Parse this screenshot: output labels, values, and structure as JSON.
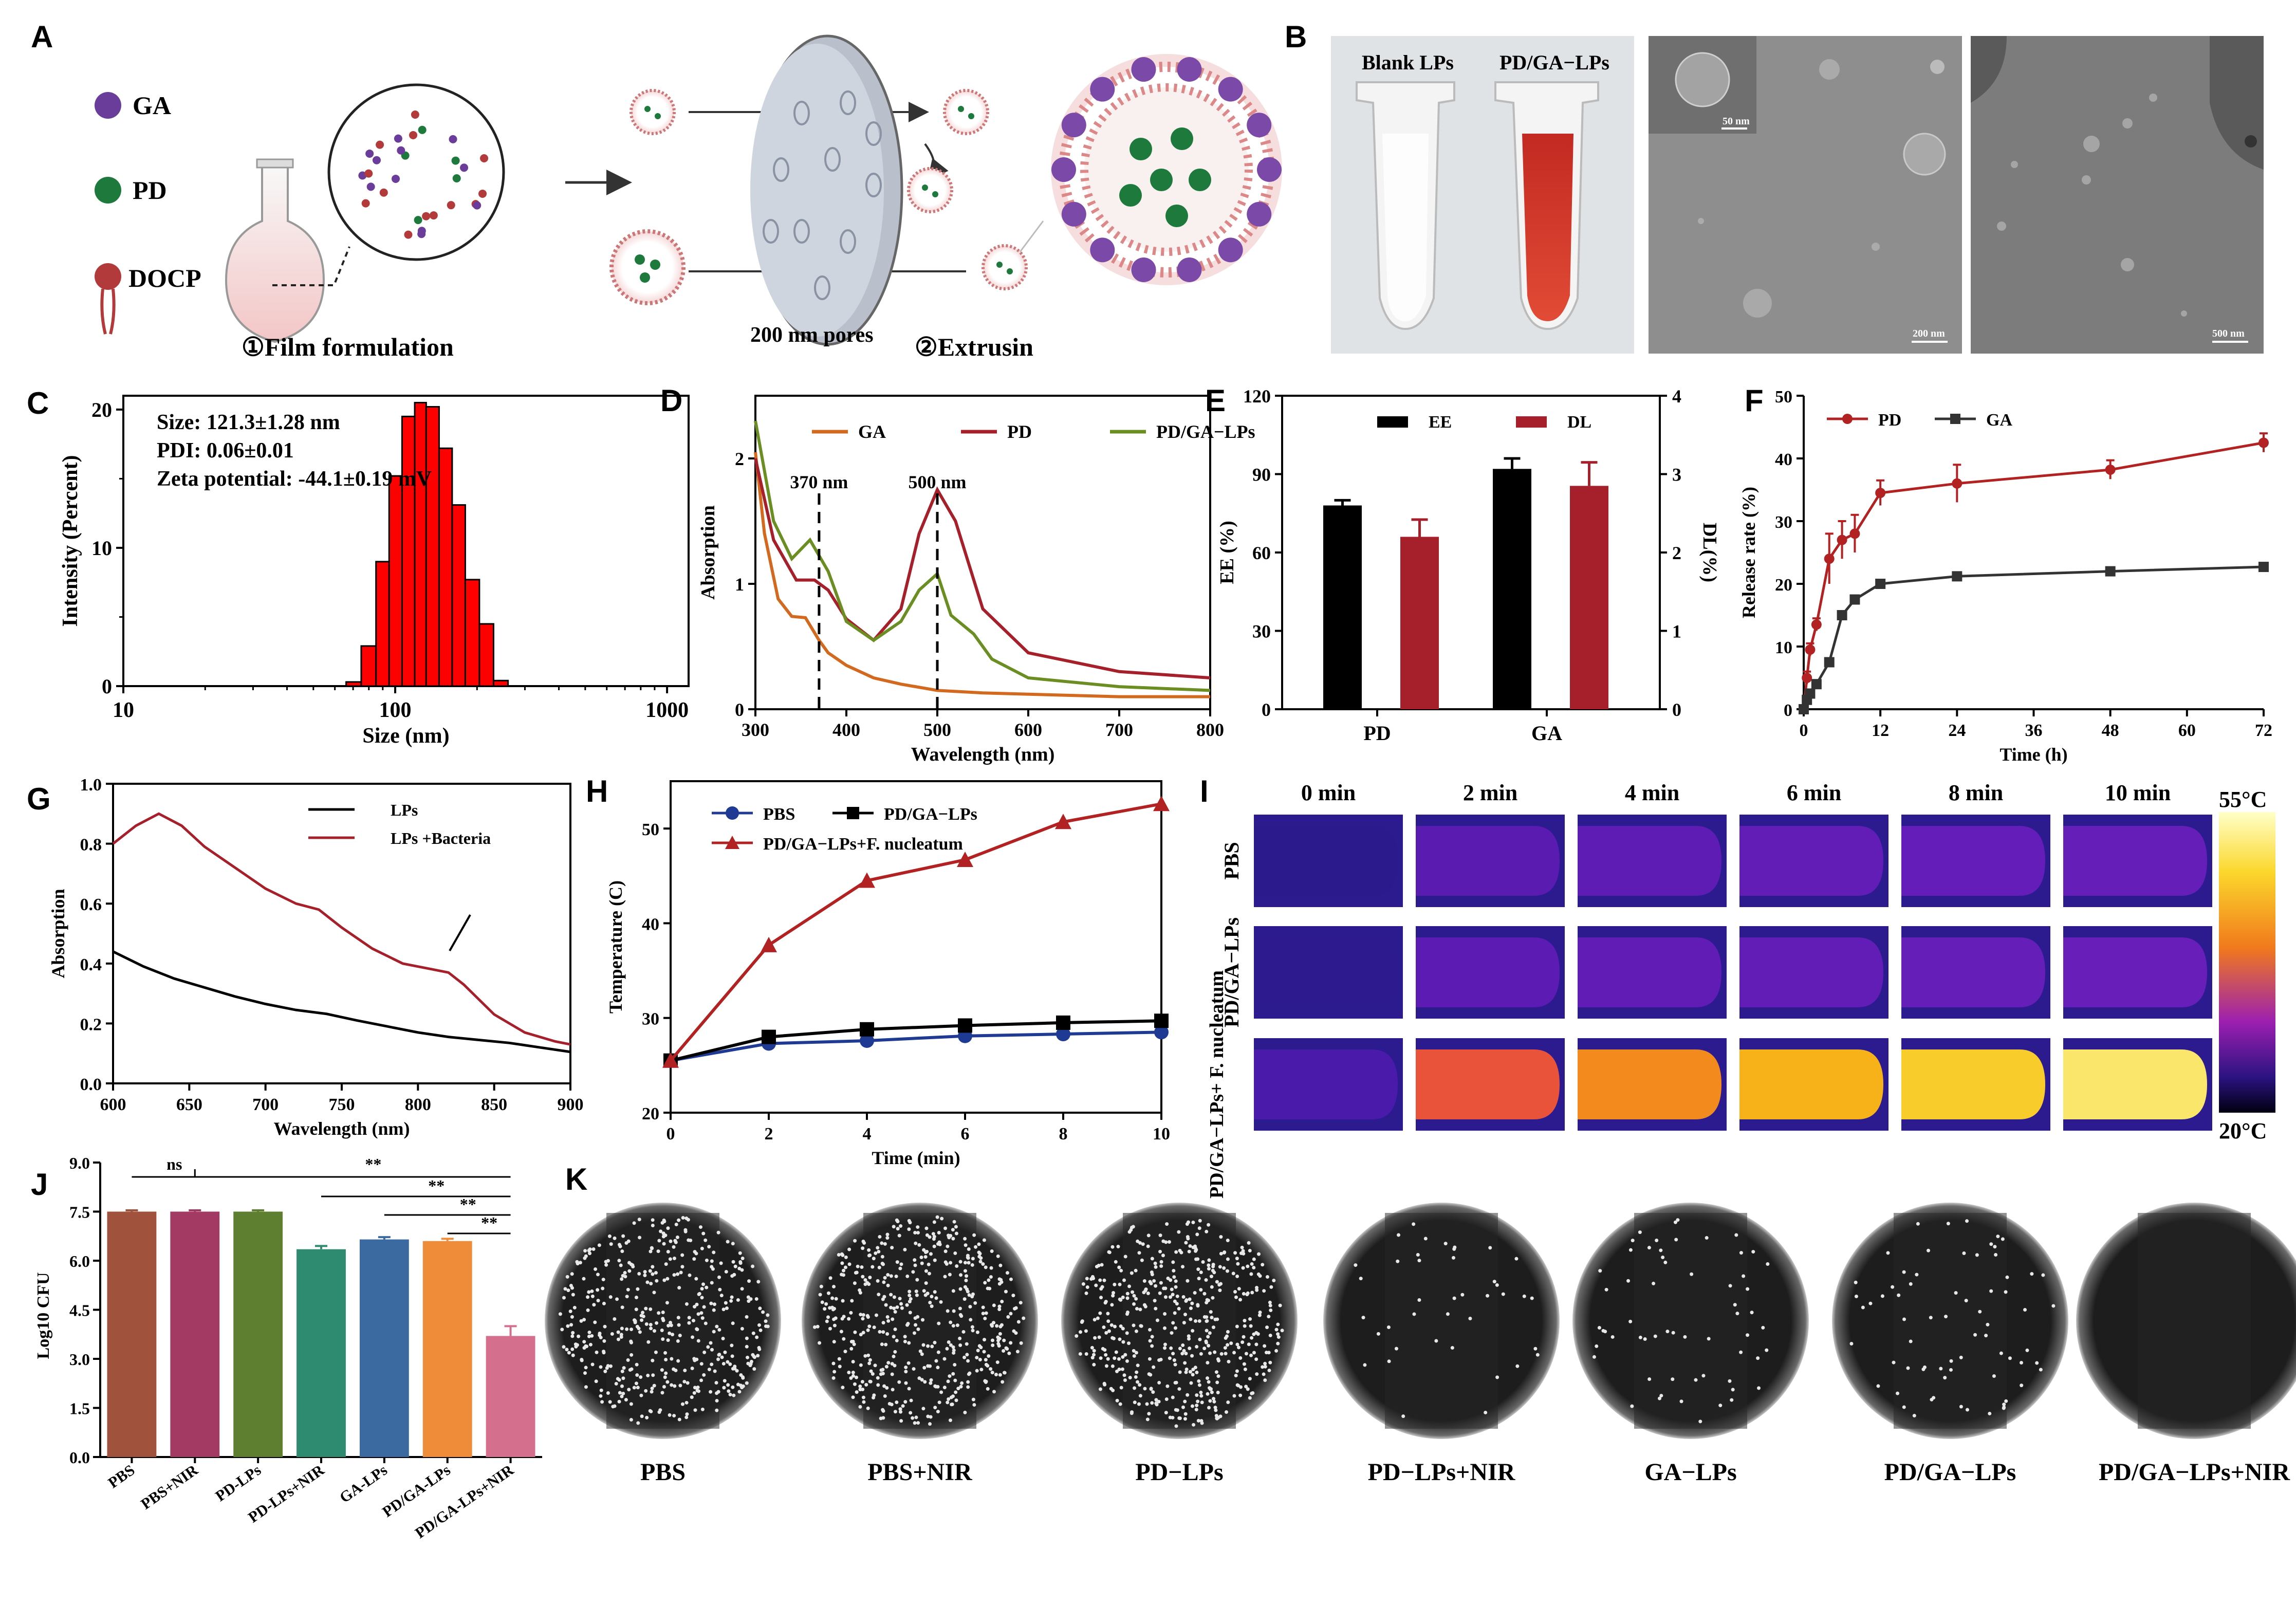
{
  "panels": {
    "A": "A",
    "B": "B",
    "C": "C",
    "D": "D",
    "E": "E",
    "F": "F",
    "G": "G",
    "H": "H",
    "I": "I",
    "J": "J",
    "K": "K"
  },
  "panel_a": {
    "legend": [
      "GA",
      "PD",
      "DOCP"
    ],
    "step1": "①Film formulation",
    "pores": "200 nm pores",
    "step2": "②Extrusin"
  },
  "panel_b": {
    "tube1": "Blank LPs",
    "tube2": "PD/GA−LPs",
    "scale1": "50 nm",
    "scale2": "200 nm",
    "scale3": "500 nm"
  },
  "panel_c": {
    "ann": [
      "Size: 121.3±1.28 nm",
      "PDI: 0.06±0.01",
      "Zeta potential: -44.1±0.19 mV"
    ]
  },
  "panel_i": {
    "cols": [
      "0 min",
      "2 min",
      "4 min",
      "6 min",
      "8 min",
      "10 min"
    ],
    "rows": [
      "PBS",
      "PD/GA−LPs",
      "PD/GA−LPs+ F. nucleatum"
    ],
    "cb_max": "55°C",
    "cb_min": "20°C",
    "colors": [
      [
        "#2a1a8c",
        "#5a1bb0",
        "#5e1cb4",
        "#621db6",
        "#641db8",
        "#661eb8"
      ],
      [
        "#2c1a8e",
        "#5c1bb2",
        "#601cb5",
        "#631db7",
        "#661eb8",
        "#681eb9"
      ],
      [
        "#4a1bab",
        "#e8533a",
        "#f28a1d",
        "#f7b21a",
        "#f8cc2a",
        "#fae66a"
      ]
    ]
  },
  "panel_k": {
    "labels": [
      "PBS",
      "PBS+NIR",
      "PD−LPs",
      "PD−LPs+NIR",
      "GA−LPs",
      "PD/GA−LPs",
      "PD/GA−LPs+NIR"
    ],
    "colony_counts": [
      450,
      500,
      500,
      40,
      60,
      70,
      0
    ]
  },
  "chart_data": [
    {
      "id": "C",
      "type": "bar",
      "xscale": "log",
      "xlim": [
        10,
        1200
      ],
      "ylim": [
        0,
        21
      ],
      "xlabel": "Size (nm)",
      "ylabel": "Intensity (Percent)",
      "xticks": [
        "10",
        "100",
        "1000"
      ],
      "yticks": [
        "0",
        "10",
        "20"
      ],
      "bins": [
        [
          66,
          75
        ],
        [
          75,
          85
        ],
        [
          85,
          95
        ],
        [
          95,
          106
        ],
        [
          106,
          118
        ],
        [
          118,
          130
        ],
        [
          130,
          145
        ],
        [
          145,
          162
        ],
        [
          162,
          181
        ],
        [
          181,
          204
        ],
        [
          204,
          230
        ],
        [
          230,
          260
        ]
      ],
      "values": [
        0.3,
        2.9,
        9.0,
        15.2,
        19.5,
        20.5,
        20.2,
        17.2,
        13.1,
        7.7,
        4.5,
        0.4
      ],
      "color": "#ff0000"
    },
    {
      "id": "D",
      "type": "line",
      "xlabel": "Wavelength (nm)",
      "ylabel": "Absorption",
      "xlim": [
        300,
        800
      ],
      "ylim": [
        0,
        2.5
      ],
      "xticks": [
        "300",
        "400",
        "500",
        "600",
        "700",
        "800"
      ],
      "yticks": [
        "0",
        "1",
        "2"
      ],
      "series": [
        {
          "name": "GA",
          "color": "#d2691e",
          "x": [
            300,
            310,
            325,
            340,
            355,
            370,
            380,
            400,
            430,
            460,
            500,
            550,
            600,
            700,
            800
          ],
          "y": [
            2.05,
            1.4,
            0.88,
            0.74,
            0.73,
            0.55,
            0.45,
            0.35,
            0.25,
            0.2,
            0.15,
            0.13,
            0.12,
            0.1,
            0.1
          ]
        },
        {
          "name": "PD",
          "color": "#a5202a",
          "x": [
            300,
            320,
            345,
            365,
            380,
            400,
            430,
            460,
            480,
            500,
            520,
            550,
            600,
            700,
            800
          ],
          "y": [
            2.0,
            1.35,
            1.03,
            1.03,
            0.95,
            0.72,
            0.55,
            0.8,
            1.4,
            1.75,
            1.5,
            0.8,
            0.45,
            0.3,
            0.25
          ]
        },
        {
          "name": "PD/GA−LPs",
          "color": "#6b8e23",
          "x": [
            300,
            320,
            340,
            360,
            380,
            400,
            430,
            460,
            480,
            500,
            515,
            540,
            560,
            600,
            700,
            800
          ],
          "y": [
            2.3,
            1.5,
            1.2,
            1.35,
            1.1,
            0.7,
            0.55,
            0.7,
            0.95,
            1.08,
            0.75,
            0.6,
            0.4,
            0.25,
            0.18,
            0.15
          ]
        }
      ],
      "annotations": [
        "370 nm",
        "500 nm"
      ]
    },
    {
      "id": "E",
      "type": "bar",
      "xlabel": "",
      "ylabel": "EE (%)",
      "y2label": "DL(%)",
      "ylim": [
        0,
        120
      ],
      "y2lim": [
        0,
        4
      ],
      "categories": [
        "PD",
        "GA"
      ],
      "yticks": [
        "0",
        "30",
        "60",
        "90",
        "120"
      ],
      "y2ticks": [
        "0",
        "1",
        "2",
        "3",
        "4"
      ],
      "series": [
        {
          "name": "EE",
          "axis": "left",
          "color": "#000000",
          "values": [
            78,
            92
          ],
          "errors": [
            2,
            4
          ]
        },
        {
          "name": "DL",
          "axis": "right",
          "color": "#a5202a",
          "values": [
            2.2,
            2.85
          ],
          "errors": [
            0.22,
            0.3
          ]
        }
      ]
    },
    {
      "id": "F",
      "type": "line",
      "xlabel": "Time (h)",
      "ylabel": "Release rate (%)",
      "xlim": [
        0,
        72
      ],
      "ylim": [
        0,
        50
      ],
      "xticks": [
        "0",
        "12",
        "24",
        "36",
        "48",
        "60",
        "72"
      ],
      "yticks": [
        "0",
        "10",
        "20",
        "30",
        "40",
        "50"
      ],
      "series": [
        {
          "name": "PD",
          "color": "#b22222",
          "marker": "circle",
          "x": [
            0,
            0.5,
            1,
            2,
            4,
            6,
            8,
            12,
            24,
            48,
            72
          ],
          "y": [
            0,
            5,
            9.5,
            13.5,
            24,
            27,
            28,
            34.5,
            36,
            38.2,
            42.5
          ],
          "err": [
            0,
            1,
            1,
            1,
            4,
            3,
            3,
            2,
            3,
            1.5,
            1.5
          ]
        },
        {
          "name": "GA",
          "color": "#333333",
          "marker": "square",
          "x": [
            0,
            0.5,
            1,
            2,
            4,
            6,
            8,
            12,
            24,
            48,
            72
          ],
          "y": [
            0,
            1.5,
            2.5,
            4,
            7.5,
            15,
            17.5,
            20,
            21.2,
            22,
            22.7
          ],
          "err": [
            0,
            0.3,
            0.3,
            0.3,
            0.5,
            0.5,
            0.5,
            0.5,
            0.5,
            0.5,
            0.5
          ]
        }
      ]
    },
    {
      "id": "G",
      "type": "line",
      "xlabel": "Wavelength (nm)",
      "ylabel": "Absorption",
      "xlim": [
        600,
        900
      ],
      "ylim": [
        0,
        1.0
      ],
      "xticks": [
        "600",
        "650",
        "700",
        "750",
        "800",
        "850",
        "900"
      ],
      "yticks": [
        "0.0",
        "0.2",
        "0.4",
        "0.6",
        "0.8",
        "1.0"
      ],
      "series": [
        {
          "name": "LPs",
          "color": "#000000",
          "x": [
            600,
            620,
            640,
            660,
            680,
            700,
            720,
            740,
            760,
            780,
            800,
            820,
            840,
            860,
            880,
            900
          ],
          "y": [
            0.44,
            0.39,
            0.35,
            0.32,
            0.29,
            0.265,
            0.245,
            0.232,
            0.21,
            0.19,
            0.17,
            0.155,
            0.145,
            0.135,
            0.12,
            0.105
          ]
        },
        {
          "name": "LPs +Bacteria",
          "color": "#a5202a",
          "x": [
            600,
            615,
            630,
            645,
            660,
            680,
            700,
            720,
            735,
            750,
            770,
            790,
            810,
            820,
            830,
            850,
            870,
            890,
            900
          ],
          "y": [
            0.8,
            0.86,
            0.9,
            0.86,
            0.79,
            0.72,
            0.65,
            0.6,
            0.58,
            0.52,
            0.45,
            0.4,
            0.38,
            0.37,
            0.33,
            0.23,
            0.17,
            0.14,
            0.13
          ]
        }
      ]
    },
    {
      "id": "H",
      "type": "line",
      "xlabel": "Time (min)",
      "ylabel": "Temperature (C)",
      "xlim": [
        0,
        10
      ],
      "ylim": [
        20,
        55
      ],
      "xticks": [
        "0",
        "2",
        "4",
        "6",
        "8",
        "10"
      ],
      "yticks": [
        "20",
        "30",
        "40",
        "50"
      ],
      "series": [
        {
          "name": "PBS",
          "color": "#1f3a93",
          "marker": "circle",
          "x": [
            0,
            2,
            4,
            6,
            8,
            10
          ],
          "y": [
            25.5,
            27.3,
            27.6,
            28.1,
            28.3,
            28.5
          ]
        },
        {
          "name": "PD/GA−LPs",
          "color": "#000000",
          "marker": "square",
          "x": [
            0,
            2,
            4,
            6,
            8,
            10
          ],
          "y": [
            25.5,
            28,
            28.8,
            29.2,
            29.5,
            29.7
          ]
        },
        {
          "name": "PD/GA−LPs+F. nucleatum",
          "color": "#b22222",
          "marker": "triangle",
          "x": [
            0,
            2,
            4,
            6,
            8,
            10
          ],
          "y": [
            25.5,
            37.7,
            44.5,
            46.7,
            50.7,
            52.6
          ]
        }
      ]
    },
    {
      "id": "J",
      "type": "bar",
      "xlabel": "",
      "ylabel": "Log10 CFU",
      "ylim": [
        0,
        9
      ],
      "yticks": [
        "0.0",
        "1.5",
        "3.0",
        "4.5",
        "6.0",
        "7.5",
        "9.0"
      ],
      "categories": [
        "PBS",
        "PBS+NIR",
        "PD-LPs",
        "PD-LPs+NIR",
        "GA-LPs",
        "PD/GA-LPs",
        "PD/GA-LPs+NIR"
      ],
      "values": [
        7.5,
        7.5,
        7.5,
        6.35,
        6.65,
        6.6,
        3.7
      ],
      "errors": [
        0.04,
        0.04,
        0.04,
        0.1,
        0.07,
        0.07,
        0.3
      ],
      "colors": [
        "#a0523d",
        "#a33a64",
        "#5e7f2f",
        "#2e8b70",
        "#3b6aa0",
        "#ef8c3a",
        "#d4708e"
      ],
      "significance": [
        "ns",
        "**",
        "**",
        "**",
        "**"
      ]
    }
  ]
}
